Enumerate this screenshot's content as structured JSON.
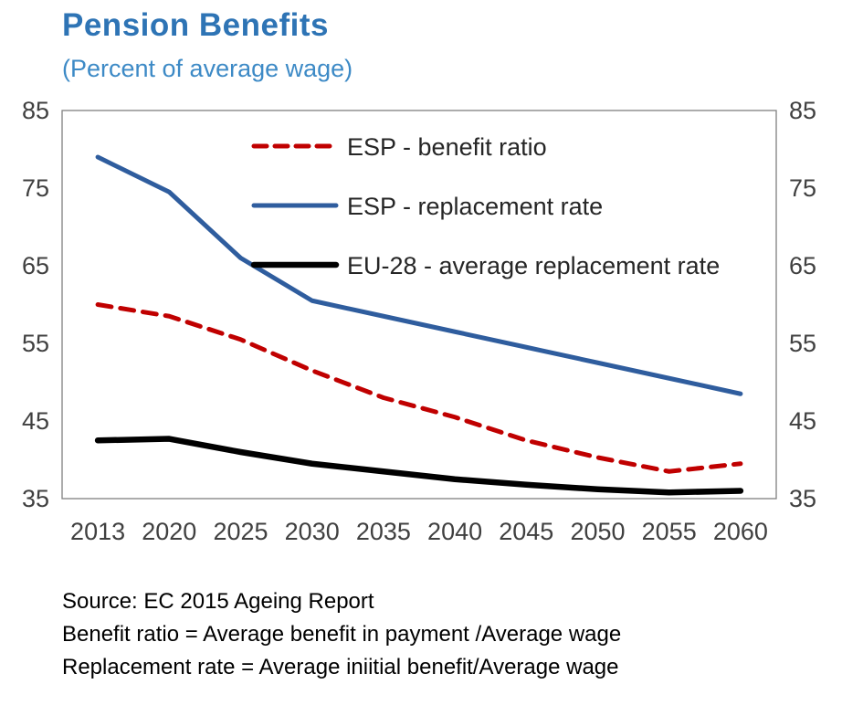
{
  "title": "Pension Benefits",
  "subtitle": "(Percent of average wage)",
  "colors": {
    "title_blue": "#2E74B5",
    "subtitle_blue": "#3D8AC6",
    "axis_text": "#404040",
    "plot_border": "#808080"
  },
  "chart_data": {
    "type": "line",
    "categories": [
      "2013",
      "2020",
      "2025",
      "2030",
      "2035",
      "2040",
      "2045",
      "2050",
      "2055",
      "2060"
    ],
    "series": [
      {
        "name": "ESP - benefit ratio",
        "color": "#C00000",
        "style": "dashed",
        "width": 5,
        "values": [
          60,
          58.5,
          55.5,
          51.5,
          48,
          45.5,
          42.5,
          40.3,
          38.5,
          39.5
        ]
      },
      {
        "name": "ESP - replacement rate",
        "color": "#2F5D9E",
        "style": "solid",
        "width": 5,
        "values": [
          79,
          74.5,
          66,
          60.5,
          58.5,
          56.5,
          54.5,
          52.5,
          50.5,
          48.5
        ]
      },
      {
        "name": "EU-28 - average replacement rate",
        "color": "#000000",
        "style": "solid",
        "width": 6.5,
        "values": [
          42.5,
          42.7,
          41,
          39.5,
          38.5,
          37.5,
          36.8,
          36.2,
          35.8,
          36
        ]
      }
    ],
    "ylim": [
      35,
      85
    ],
    "yticks": [
      35,
      45,
      55,
      65,
      75,
      85
    ],
    "grid": false,
    "legend_position": "top-inside",
    "xlabel": "",
    "ylabel": ""
  },
  "footnotes": [
    "Source: EC 2015 Ageing Report",
    "Benefit ratio = Average benefit in payment /Average wage",
    "Replacement rate = Average iniitial benefit/Average wage"
  ]
}
